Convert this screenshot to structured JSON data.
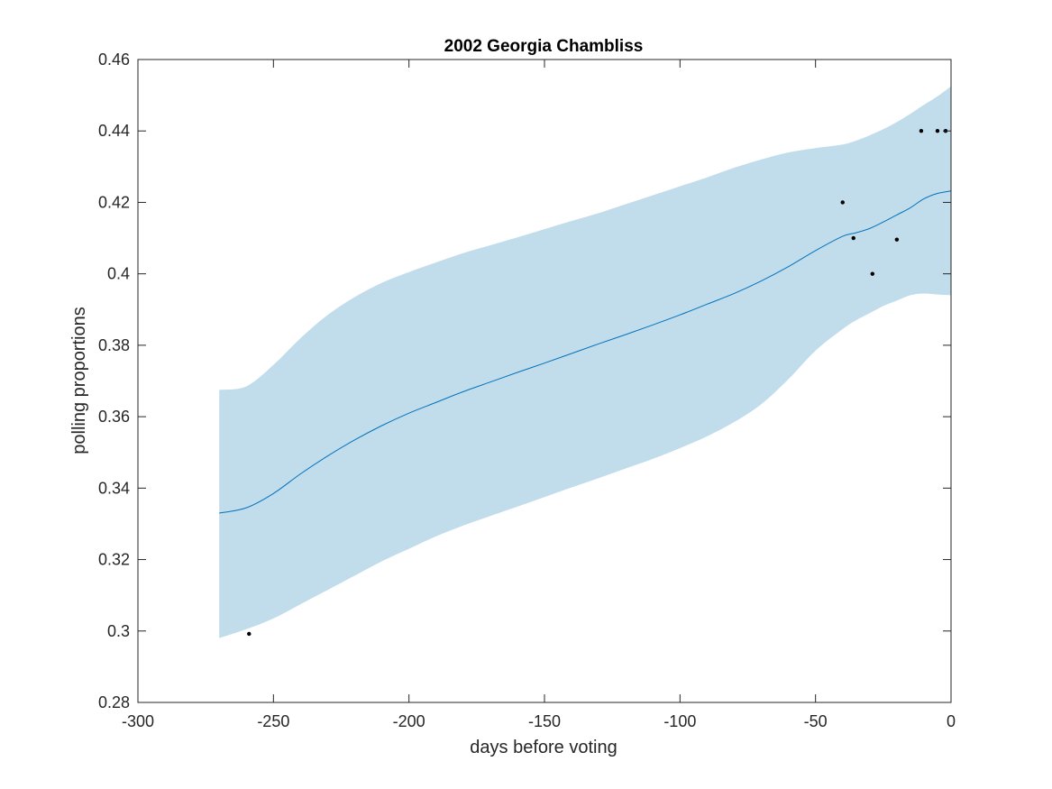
{
  "chart_data": {
    "type": "line",
    "title": "2002 Georgia Chambliss",
    "xlabel": "days before voting",
    "ylabel": "polling proportions",
    "xlim": [
      -300,
      0
    ],
    "ylim": [
      0.28,
      0.46
    ],
    "xticks": [
      -300,
      -250,
      -200,
      -150,
      -100,
      -50,
      0
    ],
    "xtick_labels": [
      "-300",
      "-250",
      "-200",
      "-150",
      "-100",
      "-50",
      "0"
    ],
    "yticks": [
      0.28,
      0.3,
      0.32,
      0.34,
      0.36,
      0.38,
      0.4,
      0.42,
      0.44,
      0.46
    ],
    "ytick_labels": [
      "0.28",
      "0.3",
      "0.32",
      "0.34",
      "0.36",
      "0.38",
      "0.4",
      "0.42",
      "0.44",
      "0.46"
    ],
    "grid": false,
    "colors": {
      "band": "#c1ddec",
      "line": "#0072bd",
      "points": "#000000",
      "axis": "#262626"
    },
    "series": [
      {
        "type": "line",
        "x": [
          -270,
          -260,
          -250,
          -240,
          -230,
          -220,
          -210,
          -200,
          -190,
          -180,
          -170,
          -160,
          -150,
          -140,
          -130,
          -120,
          -110,
          -100,
          -90,
          -80,
          -70,
          -60,
          -50,
          -40,
          -35,
          -30,
          -25,
          -20,
          -15,
          -10,
          -5,
          0
        ],
        "y": [
          0.333,
          0.3345,
          0.3385,
          0.344,
          0.349,
          0.3535,
          0.3575,
          0.361,
          0.364,
          0.367,
          0.3697,
          0.3724,
          0.375,
          0.3777,
          0.3804,
          0.383,
          0.3857,
          0.3885,
          0.3915,
          0.3945,
          0.398,
          0.402,
          0.4065,
          0.4105,
          0.4115,
          0.4127,
          0.4145,
          0.4165,
          0.4185,
          0.421,
          0.4225,
          0.4232
        ]
      },
      {
        "type": "area",
        "x": [
          -270,
          -260,
          -250,
          -240,
          -230,
          -220,
          -210,
          -200,
          -190,
          -180,
          -170,
          -160,
          -150,
          -140,
          -130,
          -120,
          -110,
          -100,
          -90,
          -80,
          -70,
          -60,
          -50,
          -40,
          -35,
          -30,
          -25,
          -20,
          -15,
          -10,
          -5,
          0
        ],
        "upper": [
          0.3675,
          0.3685,
          0.3745,
          0.382,
          0.3885,
          0.3935,
          0.3975,
          0.4005,
          0.4032,
          0.4058,
          0.408,
          0.4102,
          0.4125,
          0.4148,
          0.417,
          0.4195,
          0.422,
          0.4245,
          0.427,
          0.4297,
          0.432,
          0.434,
          0.4352,
          0.4362,
          0.4373,
          0.4388,
          0.4405,
          0.4425,
          0.4448,
          0.4473,
          0.4497,
          0.4525
        ],
        "lower": [
          0.298,
          0.3005,
          0.3035,
          0.3075,
          0.3115,
          0.3155,
          0.3195,
          0.323,
          0.3265,
          0.3295,
          0.3322,
          0.3348,
          0.3375,
          0.3402,
          0.3428,
          0.3455,
          0.3482,
          0.3512,
          0.3545,
          0.3585,
          0.3635,
          0.3705,
          0.3785,
          0.3845,
          0.387,
          0.389,
          0.391,
          0.3925,
          0.394,
          0.3945,
          0.3942,
          0.394
        ]
      },
      {
        "type": "scatter",
        "x": [
          -259,
          -40,
          -36,
          -29,
          -20,
          -11,
          -5,
          -2
        ],
        "y": [
          0.2992,
          0.42,
          0.41,
          0.4,
          0.4096,
          0.44,
          0.44,
          0.44
        ]
      }
    ]
  }
}
